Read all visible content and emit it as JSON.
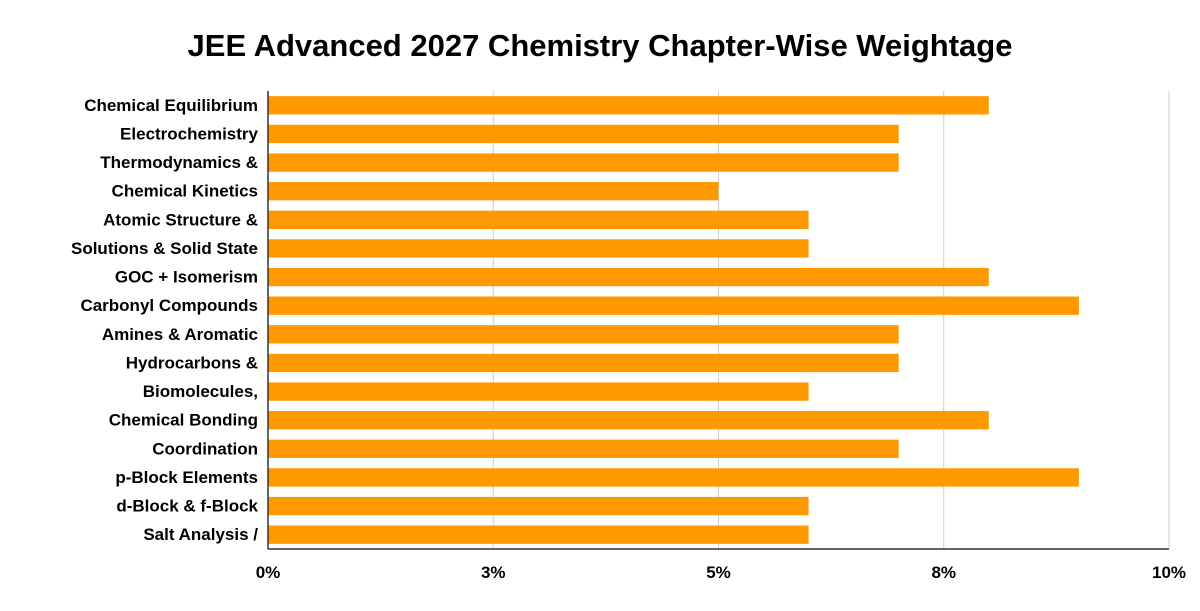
{
  "chart_data": {
    "type": "bar",
    "orientation": "horizontal",
    "title": "JEE Advanced 2027 Chemistry Chapter-Wise Weightage",
    "xlabel": "",
    "ylabel": "",
    "categories": [
      "Chemical Equilibrium",
      "Electrochemistry",
      "Thermodynamics &",
      "Chemical Kinetics",
      "Atomic Structure &",
      "Solutions & Solid State",
      "GOC + Isomerism",
      "Carbonyl Compounds",
      "Amines & Aromatic",
      "Hydrocarbons &",
      "Biomolecules,",
      "Chemical Bonding",
      "Coordination",
      "p-Block Elements",
      "d-Block & f-Block",
      "Salt Analysis /"
    ],
    "values": [
      8,
      7,
      7,
      5,
      6,
      6,
      8,
      9,
      7,
      7,
      6,
      8,
      7,
      9,
      6,
      6
    ],
    "xlim": [
      0,
      10
    ],
    "xticks": [
      0,
      2.5,
      5,
      7.5,
      10
    ],
    "xtick_labels": [
      "0%",
      "3%",
      "5%",
      "8%",
      "10%"
    ],
    "grid": true,
    "legend": "none",
    "bar_color": "#ff9900",
    "grid_color": "#cccccc",
    "axis_color": "#333333"
  }
}
